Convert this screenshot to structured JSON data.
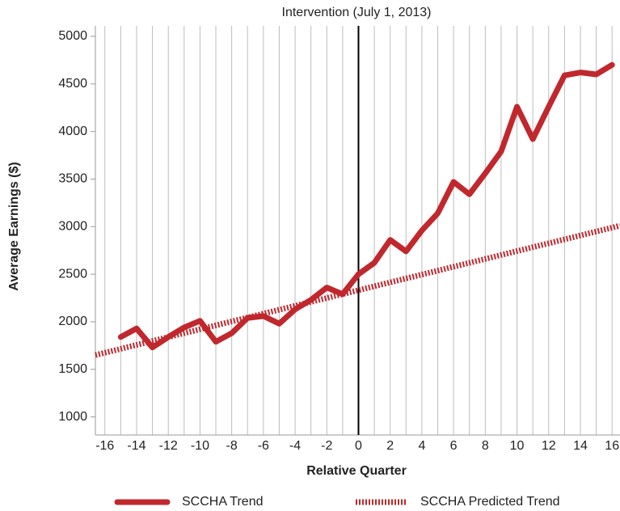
{
  "chart_data": {
    "type": "line",
    "subtitle": "Intervention (July 1, 2013)",
    "xlabel": "Relative Quarter",
    "ylabel": "Average Earnings ($)",
    "xlim": [
      -16.6,
      16.5
    ],
    "xticks": [
      -16,
      -14,
      -12,
      -10,
      -8,
      -6,
      -4,
      -2,
      0,
      2,
      4,
      6,
      8,
      10,
      12,
      14,
      16
    ],
    "xminor_ticks": [
      -15,
      -13,
      -11,
      -9,
      -7,
      -5,
      -3,
      -1,
      1,
      3,
      5,
      7,
      9,
      11,
      13,
      15
    ],
    "ylim": [
      810,
      5110
    ],
    "yticks": [
      1000,
      1500,
      2000,
      2500,
      3000,
      3500,
      4000,
      4500,
      5000
    ],
    "grid": true,
    "reference_x": 0,
    "series": [
      {
        "name": "SCCHA Trend",
        "color": "#c0282d",
        "style": "solid",
        "x": [
          -15,
          -14,
          -13,
          -12,
          -11,
          -10,
          -9,
          -8,
          -7,
          -6,
          -5,
          -4,
          -3,
          -2,
          -1,
          0,
          1,
          2,
          3,
          4,
          5,
          6,
          7,
          8,
          9,
          10,
          11,
          12,
          13,
          14,
          15,
          16
        ],
        "values": [
          1840,
          1930,
          1730,
          1840,
          1940,
          2010,
          1790,
          1880,
          2040,
          2060,
          1980,
          2130,
          2230,
          2360,
          2290,
          2500,
          2620,
          2860,
          2740,
          2960,
          3140,
          3470,
          3340,
          3560,
          3790,
          4260,
          3920,
          4260,
          4590,
          4620,
          4600,
          4700
        ]
      },
      {
        "name": "SCCHA Predicted Trend",
        "color": "#c0282d",
        "style": "dotted",
        "x": [
          -16.6,
          16.5
        ],
        "values": [
          1650,
          3010
        ]
      }
    ]
  }
}
